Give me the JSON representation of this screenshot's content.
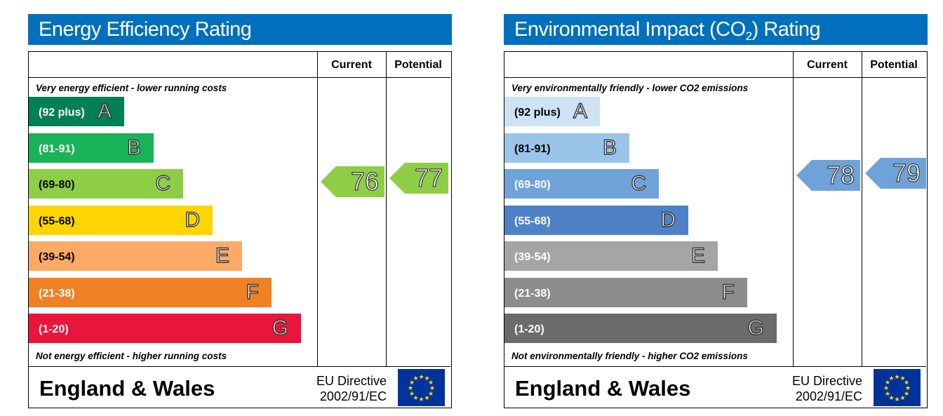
{
  "energy": {
    "title": "Energy Efficiency Rating",
    "col_current": "Current",
    "col_potential": "Potential",
    "top_caption": "Very energy efficient - lower running costs",
    "bottom_caption": "Not energy efficient - higher running costs",
    "bands": [
      {
        "range": "(92 plus)",
        "letter": "A",
        "color": "#008054"
      },
      {
        "range": "(81-91)",
        "letter": "B",
        "color": "#19b459"
      },
      {
        "range": "(69-80)",
        "letter": "C",
        "color": "#8dce46"
      },
      {
        "range": "(55-68)",
        "letter": "D",
        "color": "#ffd500"
      },
      {
        "range": "(39-54)",
        "letter": "E",
        "color": "#fcaa65"
      },
      {
        "range": "(21-38)",
        "letter": "F",
        "color": "#ef8023"
      },
      {
        "range": "(1-20)",
        "letter": "G",
        "color": "#e9153b"
      }
    ],
    "current": "76",
    "potential": "77",
    "current_color": "#8dce46",
    "potential_color": "#8dce46",
    "footer": "England & Wales",
    "directive_line1": "EU Directive",
    "directive_line2": "2002/91/EC"
  },
  "environment": {
    "title_prefix": "Environmental Impact (CO",
    "title_sub": "2",
    "title_suffix": ") Rating",
    "col_current": "Current",
    "col_potential": "Potential",
    "top_caption": "Very environmentally friendly - lower CO2 emissions",
    "bottom_caption": "Not environmentally friendly - higher CO2 emissions",
    "bands": [
      {
        "range": "(92 plus)",
        "letter": "A",
        "color": "#cde3f5"
      },
      {
        "range": "(81-91)",
        "letter": "B",
        "color": "#9bc4ea"
      },
      {
        "range": "(69-80)",
        "letter": "C",
        "color": "#6fa2d9"
      },
      {
        "range": "(55-68)",
        "letter": "D",
        "color": "#4f81c7"
      },
      {
        "range": "(39-54)",
        "letter": "E",
        "color": "#a5a5a5"
      },
      {
        "range": "(21-38)",
        "letter": "F",
        "color": "#8c8c8c"
      },
      {
        "range": "(1-20)",
        "letter": "G",
        "color": "#6b6b6b"
      }
    ],
    "current": "78",
    "potential": "79",
    "current_color": "#6fa2d9",
    "potential_color": "#6fa2d9",
    "footer": "England & Wales",
    "directive_line1": "EU Directive",
    "directive_line2": "2002/91/EC"
  }
}
